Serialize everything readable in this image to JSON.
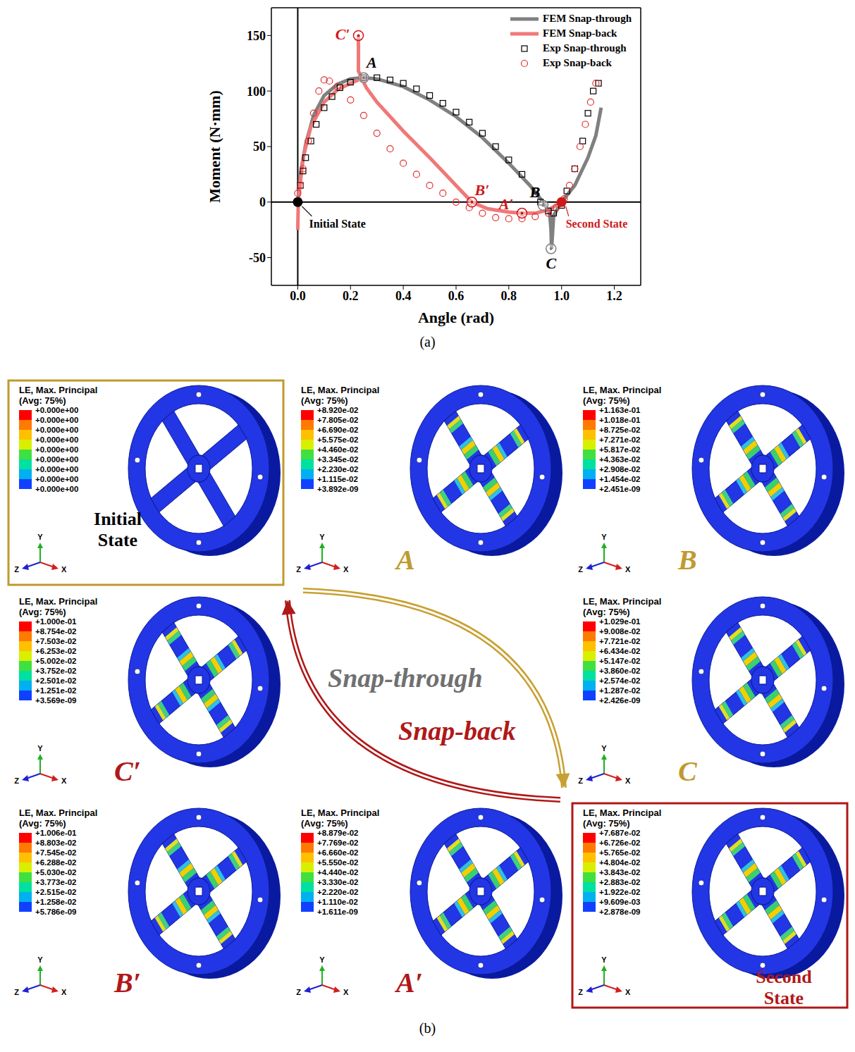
{
  "chart_data": {
    "type": "line",
    "x_label": "Angle (rad)",
    "y_label": "Moment (N·mm)",
    "xlim": [
      -0.1,
      1.3
    ],
    "ylim": [
      -75,
      175
    ],
    "xticks": [
      {
        "value": 0,
        "label": "0.0"
      },
      0.2,
      0.4,
      0.6,
      0.8,
      {
        "value": 1,
        "label": "1.0"
      },
      1.2
    ],
    "yticks": [
      -50,
      0,
      50,
      100,
      150
    ],
    "legend": "top right",
    "series": [
      {
        "name": "FEM Snap-through",
        "type": "line",
        "color": "#808080",
        "x": [
          0,
          0.01,
          0.03,
          0.06,
          0.1,
          0.15,
          0.2,
          0.25,
          0.3,
          0.4,
          0.5,
          0.6,
          0.7,
          0.8,
          0.88,
          0.93,
          0.955,
          0.96,
          0.962,
          0.97,
          1.0,
          1.05,
          1.1,
          1.13,
          1.15
        ],
        "values": [
          0,
          25,
          52,
          78,
          96,
          106,
          111,
          112,
          111,
          104,
          92,
          77,
          58,
          35,
          15,
          0,
          -10,
          -25,
          -42,
          -12,
          0,
          15,
          40,
          60,
          85
        ]
      },
      {
        "name": "FEM Snap-back",
        "type": "line",
        "color": "#f07878",
        "x": [
          0,
          0.002,
          0.02,
          0.05,
          0.1,
          0.15,
          0.2,
          0.23,
          0.23,
          0.23,
          0.23,
          0.26,
          0.3,
          0.4,
          0.5,
          0.6,
          0.66,
          0.72,
          0.8,
          0.85,
          0.9,
          0.95,
          1.0
        ],
        "values": [
          -25,
          0,
          40,
          68,
          90,
          101,
          107,
          110,
          null,
          150,
          118,
          103,
          90,
          64,
          40,
          15,
          0,
          -6,
          -9,
          -10,
          -10,
          -7,
          0
        ]
      },
      {
        "name": "Exp Snap-through",
        "type": "scatter",
        "marker": "square",
        "color": "#000000",
        "x": [
          0.0,
          0.01,
          0.02,
          0.03,
          0.05,
          0.07,
          0.1,
          0.13,
          0.16,
          0.2,
          0.25,
          0.3,
          0.35,
          0.4,
          0.45,
          0.5,
          0.55,
          0.6,
          0.65,
          0.7,
          0.75,
          0.8,
          0.85,
          0.9,
          0.92,
          0.95,
          0.97,
          1.0,
          1.02,
          1.05,
          1.08,
          1.1,
          1.12,
          1.14
        ],
        "values": [
          0,
          15,
          28,
          40,
          55,
          70,
          85,
          95,
          103,
          108,
          112,
          112,
          110,
          107,
          102,
          96,
          89,
          81,
          72,
          62,
          50,
          38,
          25,
          10,
          0,
          -8,
          -10,
          -3,
          10,
          30,
          55,
          80,
          100,
          107
        ]
      },
      {
        "name": "Exp Snap-back",
        "type": "scatter",
        "marker": "circle",
        "color": "#e03030",
        "x": [
          1.13,
          1.11,
          1.09,
          1.07,
          1.05,
          1.03,
          1.01,
          1.0,
          0.98,
          0.95,
          0.9,
          0.85,
          0.8,
          0.75,
          0.7,
          0.65,
          0.6,
          0.55,
          0.5,
          0.45,
          0.4,
          0.35,
          0.3,
          0.25,
          0.2,
          0.15,
          0.12,
          0.1,
          0.08,
          0.06,
          0.04,
          0.02,
          0.01,
          0.0
        ],
        "values": [
          107,
          90,
          70,
          50,
          30,
          15,
          3,
          0,
          -5,
          -10,
          -13,
          -15,
          -15,
          -14,
          -10,
          -5,
          0,
          8,
          15,
          25,
          35,
          48,
          62,
          78,
          92,
          104,
          109,
          110,
          100,
          80,
          55,
          30,
          15,
          8
        ]
      }
    ],
    "reference_lines": [
      {
        "axis": "x",
        "value": 0
      },
      {
        "axis": "y",
        "value": 0
      }
    ],
    "annotations": [
      {
        "text": "A",
        "x": 0.25,
        "y": 112,
        "color": "#000000",
        "marker": "ring"
      },
      {
        "text": "C′",
        "x": 0.23,
        "y": 150,
        "color": "#d01818",
        "marker": "ring"
      },
      {
        "text": "B",
        "x": 0.93,
        "y": -3,
        "color": "#000000",
        "marker": "ring"
      },
      {
        "text": "C",
        "x": 0.96,
        "y": -42,
        "color": "#000000",
        "marker": "ring"
      },
      {
        "text": "B′",
        "x": 0.66,
        "y": 0,
        "color": "#d01818",
        "marker": "ring"
      },
      {
        "text": "A′",
        "x": 0.85,
        "y": -10,
        "color": "#d01818",
        "marker": "ring"
      },
      {
        "text": "Initial State",
        "x": 0,
        "y": 0,
        "color": "#000000",
        "marker": "filled"
      },
      {
        "text": "Second State",
        "x": 1.0,
        "y": 0,
        "color": "#d01818",
        "marker": "filled"
      }
    ]
  },
  "captions": [
    "(a)",
    "(b)"
  ],
  "contour_legend_title": [
    "LE, Max. Principal",
    "(Avg: 75%)"
  ],
  "axis_triad": [
    "Y",
    "Z",
    "X"
  ],
  "transitions": [
    {
      "label": "Snap-through",
      "color": "#707070"
    },
    {
      "label": "Snap-back",
      "color": "#b01818"
    }
  ],
  "panels": [
    {
      "label": "Initial State",
      "color": "#000000",
      "legend_values": [
        "+0.000e+00",
        "+0.000e+00",
        "+0.000e+00",
        "+0.000e+00",
        "+0.000e+00",
        "+0.000e+00",
        "+0.000e+00",
        "+0.000e+00",
        "+0.000e+00"
      ]
    },
    {
      "label": "A",
      "color": "#c09a30",
      "legend_values": [
        "+8.920e-02",
        "+7.805e-02",
        "+6.690e-02",
        "+5.575e-02",
        "+4.460e-02",
        "+3.345e-02",
        "+2.230e-02",
        "+1.115e-02",
        "+3.892e-09"
      ]
    },
    {
      "label": "B",
      "color": "#c09a30",
      "legend_values": [
        "+1.163e-01",
        "+1.018e-01",
        "+8.725e-02",
        "+7.271e-02",
        "+5.817e-02",
        "+4.363e-02",
        "+2.908e-02",
        "+1.454e-02",
        "+2.451e-09"
      ]
    },
    {
      "label": "C′",
      "color": "#b01818",
      "legend_values": [
        "+1.000e-01",
        "+8.754e-02",
        "+7.503e-02",
        "+6.253e-02",
        "+5.002e-02",
        "+3.752e-02",
        "+2.501e-02",
        "+1.251e-02",
        "+3.569e-09"
      ]
    },
    {
      "label": "C",
      "color": "#c09a30",
      "legend_values": [
        "+1.029e-01",
        "+9.008e-02",
        "+7.721e-02",
        "+6.434e-02",
        "+5.147e-02",
        "+3.860e-02",
        "+2.574e-02",
        "+1.287e-02",
        "+2.426e-09"
      ]
    },
    {
      "label": "B′",
      "color": "#b01818",
      "legend_values": [
        "+1.006e-01",
        "+8.803e-02",
        "+7.545e-02",
        "+6.288e-02",
        "+5.030e-02",
        "+3.773e-02",
        "+2.515e-02",
        "+1.258e-02",
        "+5.786e-09"
      ]
    },
    {
      "label": "A′",
      "color": "#b01818",
      "legend_values": [
        "+8.879e-02",
        "+7.769e-02",
        "+6.660e-02",
        "+5.550e-02",
        "+4.440e-02",
        "+3.330e-02",
        "+2.220e-02",
        "+1.110e-02",
        "+1.611e-09"
      ]
    },
    {
      "label": "Second State",
      "color": "#b01818",
      "legend_values": [
        "+7.687e-02",
        "+6.726e-02",
        "+5.765e-02",
        "+4.804e-02",
        "+3.843e-02",
        "+2.883e-02",
        "+1.922e-02",
        "+9.609e-03",
        "+2.878e-09"
      ]
    }
  ]
}
